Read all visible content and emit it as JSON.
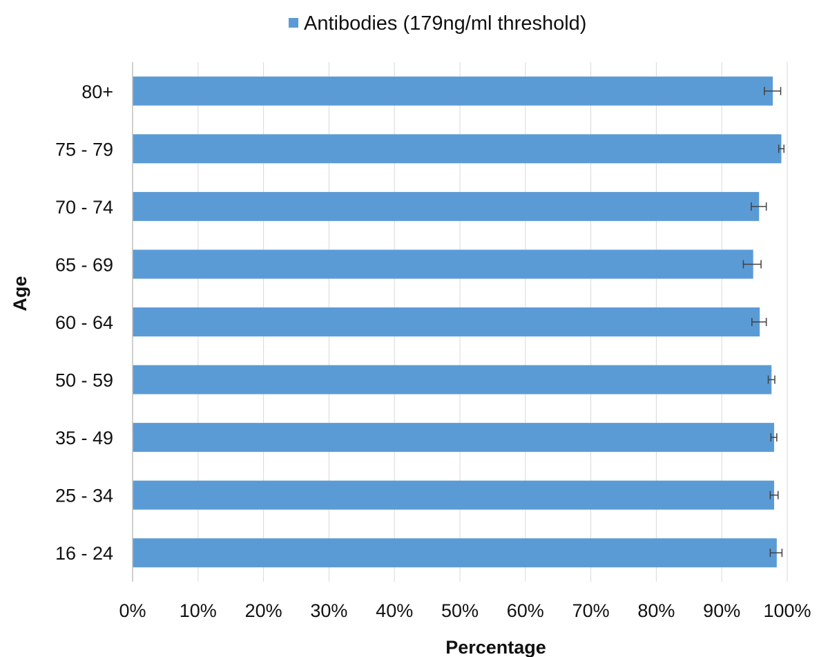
{
  "chart_data": {
    "type": "bar",
    "orientation": "horizontal",
    "categories": [
      "80+",
      "75 - 79",
      "70 - 74",
      "65 - 69",
      "60 - 64",
      "50 - 59",
      "35 - 49",
      "25 - 34",
      "16 - 24"
    ],
    "series": [
      {
        "name": "Antibodies (179ng/ml threshold)",
        "color": "#5b9bd5",
        "values": [
          97.8,
          99.1,
          95.7,
          94.8,
          95.8,
          97.6,
          98.0,
          98.0,
          98.4
        ],
        "error_low": [
          96.5,
          98.7,
          94.5,
          93.3,
          94.6,
          97.1,
          97.5,
          97.4,
          97.4
        ],
        "error_high": [
          99.0,
          99.5,
          96.8,
          96.0,
          96.8,
          98.1,
          98.4,
          98.6,
          99.2
        ]
      }
    ],
    "xlabel": "Percentage",
    "ylabel": "Age",
    "xlim": [
      0,
      100
    ],
    "x_ticks": [
      "0%",
      "10%",
      "20%",
      "30%",
      "40%",
      "50%",
      "60%",
      "70%",
      "80%",
      "90%",
      "100%"
    ],
    "grid": "vertical",
    "legend_position": "top",
    "error_bar_color": "#404040"
  }
}
